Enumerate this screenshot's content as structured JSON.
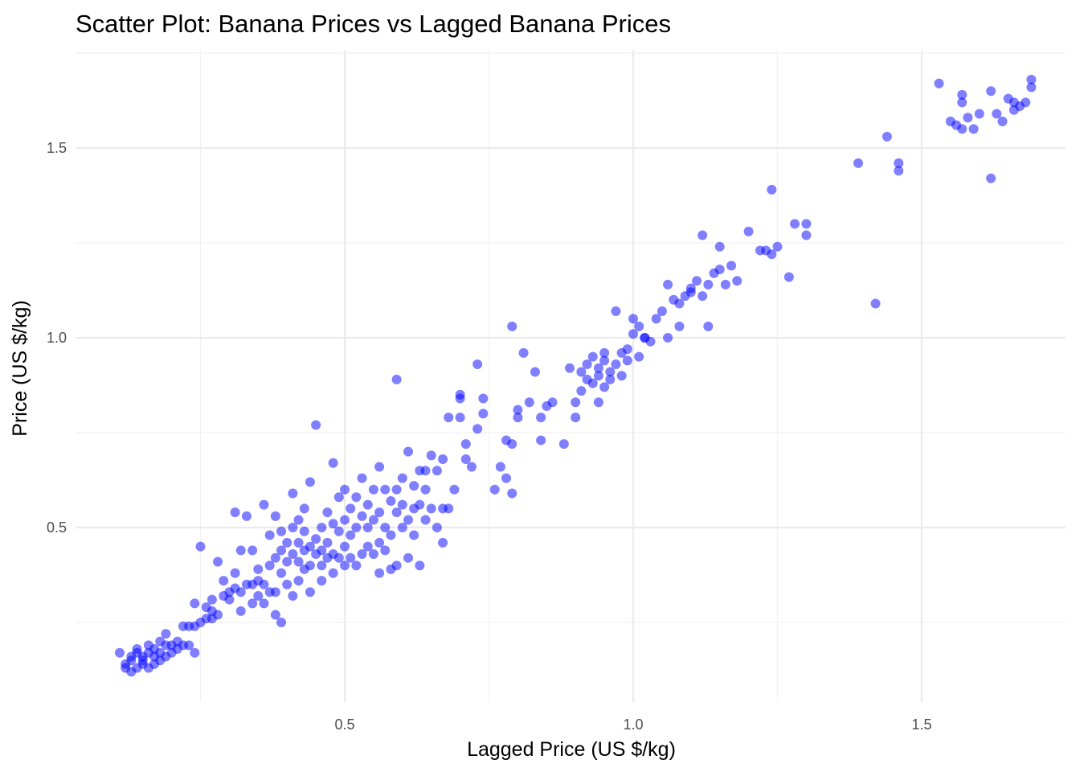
{
  "chart_data": {
    "type": "scatter",
    "title": "Scatter Plot: Banana Prices vs Lagged Banana Prices",
    "xlabel": "Lagged Price (US $/kg)",
    "ylabel": "Price (US $/kg)",
    "xlim": [
      0.05,
      1.75
    ],
    "ylim": [
      0.06,
      1.75
    ],
    "x_ticks": [
      0.5,
      1.0,
      1.5
    ],
    "x_tick_labels": [
      "0.5",
      "1.0",
      "1.5"
    ],
    "y_ticks": [
      0.5,
      1.0,
      1.5
    ],
    "y_tick_labels": [
      "0.5",
      "1.0",
      "1.5"
    ],
    "grid": true,
    "legend": "none",
    "point_color": "#0000FF",
    "point_opacity": 0.5,
    "series": [
      {
        "points": [
          [
            0.11,
            0.17
          ],
          [
            0.12,
            0.13
          ],
          [
            0.12,
            0.14
          ],
          [
            0.13,
            0.12
          ],
          [
            0.13,
            0.15
          ],
          [
            0.13,
            0.16
          ],
          [
            0.14,
            0.13
          ],
          [
            0.14,
            0.17
          ],
          [
            0.14,
            0.18
          ],
          [
            0.15,
            0.14
          ],
          [
            0.15,
            0.15
          ],
          [
            0.15,
            0.16
          ],
          [
            0.16,
            0.13
          ],
          [
            0.16,
            0.17
          ],
          [
            0.16,
            0.19
          ],
          [
            0.17,
            0.14
          ],
          [
            0.17,
            0.16
          ],
          [
            0.17,
            0.18
          ],
          [
            0.18,
            0.15
          ],
          [
            0.18,
            0.17
          ],
          [
            0.18,
            0.2
          ],
          [
            0.19,
            0.16
          ],
          [
            0.19,
            0.19
          ],
          [
            0.19,
            0.22
          ],
          [
            0.2,
            0.17
          ],
          [
            0.2,
            0.19
          ],
          [
            0.21,
            0.18
          ],
          [
            0.21,
            0.2
          ],
          [
            0.22,
            0.19
          ],
          [
            0.22,
            0.24
          ],
          [
            0.23,
            0.19
          ],
          [
            0.23,
            0.24
          ],
          [
            0.24,
            0.17
          ],
          [
            0.24,
            0.24
          ],
          [
            0.24,
            0.3
          ],
          [
            0.25,
            0.25
          ],
          [
            0.25,
            0.45
          ],
          [
            0.26,
            0.26
          ],
          [
            0.26,
            0.29
          ],
          [
            0.27,
            0.26
          ],
          [
            0.27,
            0.28
          ],
          [
            0.27,
            0.31
          ],
          [
            0.28,
            0.27
          ],
          [
            0.28,
            0.41
          ],
          [
            0.29,
            0.32
          ],
          [
            0.29,
            0.36
          ],
          [
            0.3,
            0.31
          ],
          [
            0.3,
            0.33
          ],
          [
            0.31,
            0.34
          ],
          [
            0.31,
            0.38
          ],
          [
            0.31,
            0.54
          ],
          [
            0.32,
            0.28
          ],
          [
            0.32,
            0.33
          ],
          [
            0.32,
            0.44
          ],
          [
            0.33,
            0.35
          ],
          [
            0.33,
            0.53
          ],
          [
            0.34,
            0.3
          ],
          [
            0.34,
            0.35
          ],
          [
            0.34,
            0.44
          ],
          [
            0.35,
            0.32
          ],
          [
            0.35,
            0.36
          ],
          [
            0.35,
            0.39
          ],
          [
            0.36,
            0.3
          ],
          [
            0.36,
            0.35
          ],
          [
            0.36,
            0.56
          ],
          [
            0.37,
            0.33
          ],
          [
            0.37,
            0.4
          ],
          [
            0.37,
            0.48
          ],
          [
            0.38,
            0.27
          ],
          [
            0.38,
            0.33
          ],
          [
            0.38,
            0.42
          ],
          [
            0.38,
            0.53
          ],
          [
            0.39,
            0.25
          ],
          [
            0.39,
            0.38
          ],
          [
            0.39,
            0.44
          ],
          [
            0.39,
            0.49
          ],
          [
            0.4,
            0.35
          ],
          [
            0.4,
            0.41
          ],
          [
            0.4,
            0.46
          ],
          [
            0.41,
            0.32
          ],
          [
            0.41,
            0.43
          ],
          [
            0.41,
            0.5
          ],
          [
            0.41,
            0.59
          ],
          [
            0.42,
            0.36
          ],
          [
            0.42,
            0.41
          ],
          [
            0.42,
            0.46
          ],
          [
            0.42,
            0.52
          ],
          [
            0.43,
            0.39
          ],
          [
            0.43,
            0.44
          ],
          [
            0.43,
            0.49
          ],
          [
            0.43,
            0.55
          ],
          [
            0.44,
            0.33
          ],
          [
            0.44,
            0.4
          ],
          [
            0.44,
            0.45
          ],
          [
            0.44,
            0.62
          ],
          [
            0.45,
            0.43
          ],
          [
            0.45,
            0.47
          ],
          [
            0.45,
            0.77
          ],
          [
            0.46,
            0.36
          ],
          [
            0.46,
            0.4
          ],
          [
            0.46,
            0.44
          ],
          [
            0.46,
            0.5
          ],
          [
            0.47,
            0.42
          ],
          [
            0.47,
            0.46
          ],
          [
            0.47,
            0.54
          ],
          [
            0.48,
            0.38
          ],
          [
            0.48,
            0.43
          ],
          [
            0.48,
            0.51
          ],
          [
            0.48,
            0.67
          ],
          [
            0.49,
            0.42
          ],
          [
            0.49,
            0.49
          ],
          [
            0.49,
            0.58
          ],
          [
            0.5,
            0.4
          ],
          [
            0.5,
            0.45
          ],
          [
            0.5,
            0.52
          ],
          [
            0.5,
            0.6
          ],
          [
            0.51,
            0.42
          ],
          [
            0.51,
            0.48
          ],
          [
            0.51,
            0.55
          ],
          [
            0.52,
            0.4
          ],
          [
            0.52,
            0.5
          ],
          [
            0.52,
            0.58
          ],
          [
            0.53,
            0.43
          ],
          [
            0.53,
            0.53
          ],
          [
            0.53,
            0.63
          ],
          [
            0.54,
            0.45
          ],
          [
            0.54,
            0.5
          ],
          [
            0.54,
            0.56
          ],
          [
            0.55,
            0.43
          ],
          [
            0.55,
            0.52
          ],
          [
            0.55,
            0.6
          ],
          [
            0.56,
            0.38
          ],
          [
            0.56,
            0.46
          ],
          [
            0.56,
            0.54
          ],
          [
            0.56,
            0.66
          ],
          [
            0.57,
            0.44
          ],
          [
            0.57,
            0.5
          ],
          [
            0.57,
            0.6
          ],
          [
            0.58,
            0.39
          ],
          [
            0.58,
            0.48
          ],
          [
            0.58,
            0.57
          ],
          [
            0.59,
            0.4
          ],
          [
            0.59,
            0.54
          ],
          [
            0.59,
            0.6
          ],
          [
            0.59,
            0.89
          ],
          [
            0.6,
            0.5
          ],
          [
            0.6,
            0.56
          ],
          [
            0.6,
            0.63
          ],
          [
            0.61,
            0.42
          ],
          [
            0.61,
            0.52
          ],
          [
            0.61,
            0.7
          ],
          [
            0.62,
            0.48
          ],
          [
            0.62,
            0.55
          ],
          [
            0.62,
            0.61
          ],
          [
            0.63,
            0.4
          ],
          [
            0.63,
            0.56
          ],
          [
            0.63,
            0.65
          ],
          [
            0.64,
            0.52
          ],
          [
            0.64,
            0.6
          ],
          [
            0.64,
            0.65
          ],
          [
            0.65,
            0.69
          ],
          [
            0.65,
            0.55
          ],
          [
            0.66,
            0.5
          ],
          [
            0.66,
            0.65
          ],
          [
            0.67,
            0.46
          ],
          [
            0.67,
            0.55
          ],
          [
            0.67,
            0.68
          ],
          [
            0.68,
            0.55
          ],
          [
            0.68,
            0.79
          ],
          [
            0.69,
            0.6
          ],
          [
            0.7,
            0.79
          ],
          [
            0.7,
            0.84
          ],
          [
            0.7,
            0.85
          ],
          [
            0.71,
            0.68
          ],
          [
            0.71,
            0.72
          ],
          [
            0.72,
            0.66
          ],
          [
            0.73,
            0.93
          ],
          [
            0.73,
            0.76
          ],
          [
            0.74,
            0.84
          ],
          [
            0.74,
            0.8
          ],
          [
            0.76,
            0.6
          ],
          [
            0.77,
            0.66
          ],
          [
            0.78,
            0.63
          ],
          [
            0.78,
            0.73
          ],
          [
            0.79,
            0.59
          ],
          [
            0.79,
            0.72
          ],
          [
            0.79,
            1.03
          ],
          [
            0.8,
            0.79
          ],
          [
            0.8,
            0.81
          ],
          [
            0.81,
            0.96
          ],
          [
            0.82,
            0.83
          ],
          [
            0.83,
            0.91
          ],
          [
            0.84,
            0.79
          ],
          [
            0.84,
            0.73
          ],
          [
            0.85,
            0.82
          ],
          [
            0.86,
            0.83
          ],
          [
            0.88,
            0.72
          ],
          [
            0.89,
            0.92
          ],
          [
            0.9,
            0.79
          ],
          [
            0.9,
            0.83
          ],
          [
            0.91,
            0.86
          ],
          [
            0.91,
            0.91
          ],
          [
            0.92,
            0.89
          ],
          [
            0.92,
            0.93
          ],
          [
            0.93,
            0.88
          ],
          [
            0.93,
            0.95
          ],
          [
            0.94,
            0.83
          ],
          [
            0.94,
            0.9
          ],
          [
            0.94,
            0.92
          ],
          [
            0.95,
            0.87
          ],
          [
            0.95,
            0.94
          ],
          [
            0.95,
            0.96
          ],
          [
            0.96,
            0.91
          ],
          [
            0.96,
            0.89
          ],
          [
            0.97,
            1.07
          ],
          [
            0.97,
            0.93
          ],
          [
            0.98,
            0.96
          ],
          [
            0.98,
            0.9
          ],
          [
            0.99,
            0.97
          ],
          [
            0.99,
            0.94
          ],
          [
            1.0,
            1.01
          ],
          [
            1.0,
            1.05
          ],
          [
            1.01,
            0.95
          ],
          [
            1.01,
            1.03
          ],
          [
            1.02,
            1.0
          ],
          [
            1.02,
            1.0
          ],
          [
            1.03,
            0.99
          ],
          [
            1.04,
            1.05
          ],
          [
            1.05,
            1.07
          ],
          [
            1.06,
            1.0
          ],
          [
            1.06,
            1.14
          ],
          [
            1.07,
            1.1
          ],
          [
            1.08,
            1.09
          ],
          [
            1.08,
            1.03
          ],
          [
            1.09,
            1.11
          ],
          [
            1.1,
            1.13
          ],
          [
            1.1,
            1.12
          ],
          [
            1.11,
            1.15
          ],
          [
            1.12,
            1.11
          ],
          [
            1.12,
            1.27
          ],
          [
            1.13,
            1.14
          ],
          [
            1.13,
            1.03
          ],
          [
            1.14,
            1.17
          ],
          [
            1.15,
            1.18
          ],
          [
            1.15,
            1.24
          ],
          [
            1.16,
            1.14
          ],
          [
            1.17,
            1.19
          ],
          [
            1.18,
            1.15
          ],
          [
            1.2,
            1.28
          ],
          [
            1.22,
            1.23
          ],
          [
            1.23,
            1.23
          ],
          [
            1.24,
            1.39
          ],
          [
            1.24,
            1.22
          ],
          [
            1.25,
            1.24
          ],
          [
            1.27,
            1.16
          ],
          [
            1.28,
            1.3
          ],
          [
            1.3,
            1.27
          ],
          [
            1.3,
            1.3
          ],
          [
            1.39,
            1.46
          ],
          [
            1.42,
            1.09
          ],
          [
            1.44,
            1.53
          ],
          [
            1.46,
            1.44
          ],
          [
            1.46,
            1.46
          ],
          [
            1.53,
            1.67
          ],
          [
            1.55,
            1.57
          ],
          [
            1.56,
            1.56
          ],
          [
            1.57,
            1.55
          ],
          [
            1.57,
            1.62
          ],
          [
            1.57,
            1.64
          ],
          [
            1.58,
            1.58
          ],
          [
            1.59,
            1.55
          ],
          [
            1.6,
            1.59
          ],
          [
            1.62,
            1.65
          ],
          [
            1.62,
            1.42
          ],
          [
            1.63,
            1.59
          ],
          [
            1.64,
            1.57
          ],
          [
            1.65,
            1.63
          ],
          [
            1.66,
            1.6
          ],
          [
            1.66,
            1.62
          ],
          [
            1.67,
            1.61
          ],
          [
            1.68,
            1.62
          ],
          [
            1.69,
            1.66
          ],
          [
            1.69,
            1.68
          ]
        ]
      }
    ]
  }
}
